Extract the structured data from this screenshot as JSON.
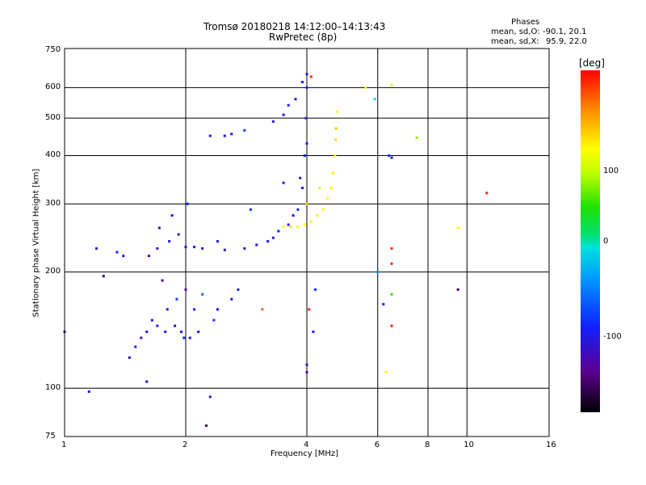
{
  "chart_data": {
    "type": "scatter",
    "title": "Tromsø 20180218 14:12:00–14:13:43",
    "subtitle": "RwPretec (8p)",
    "xlabel": "Frequency [MHz]",
    "ylabel": "Stationary phase Virtual Height [km]",
    "xscale": "log",
    "yscale": "log",
    "xlim": [
      1,
      16
    ],
    "ylim": [
      75,
      750
    ],
    "xticks": [
      "1",
      "2",
      "4",
      "6",
      "8",
      "10",
      "16"
    ],
    "xtick_values": [
      1,
      2,
      4,
      6,
      8,
      10,
      16
    ],
    "yticks": [
      "75",
      "100",
      "200",
      "300",
      "400",
      "500",
      "600",
      "750"
    ],
    "ytick_values": [
      75,
      100,
      200,
      300,
      400,
      500,
      600,
      750
    ],
    "grid": true,
    "stats": {
      "header": "Phases",
      "o_label": "mean, sd,O:",
      "o_value": "-90.1, 20.1",
      "x_label": "mean, sd,X:",
      "x_value": "95.9, 22.0"
    },
    "colorbar": {
      "label": "[deg]",
      "ticks": [
        "100",
        "0",
        "-100"
      ],
      "range": [
        -180,
        180
      ]
    },
    "points": [
      [
        1.0,
        140,
        -120
      ],
      [
        1.15,
        98,
        -110
      ],
      [
        1.2,
        230,
        -100
      ],
      [
        1.25,
        195,
        -150
      ],
      [
        1.35,
        225,
        -90
      ],
      [
        1.4,
        220,
        -110
      ],
      [
        1.45,
        120,
        -110
      ],
      [
        1.5,
        128,
        -100
      ],
      [
        1.55,
        135,
        -120
      ],
      [
        1.6,
        140,
        -105
      ],
      [
        1.62,
        220,
        -130
      ],
      [
        1.65,
        150,
        -100
      ],
      [
        1.6,
        104,
        -110
      ],
      [
        1.7,
        145,
        -90
      ],
      [
        1.7,
        230,
        -110
      ],
      [
        1.72,
        260,
        -120
      ],
      [
        1.75,
        190,
        -140
      ],
      [
        1.78,
        140,
        -110
      ],
      [
        1.8,
        160,
        -100
      ],
      [
        1.82,
        240,
        -90
      ],
      [
        1.85,
        280,
        -100
      ],
      [
        1.88,
        145,
        -130
      ],
      [
        1.9,
        170,
        -80
      ],
      [
        1.92,
        250,
        -110
      ],
      [
        1.95,
        140,
        -100
      ],
      [
        1.98,
        135,
        -90
      ],
      [
        2.0,
        180,
        -120
      ],
      [
        2.0,
        232,
        -110
      ],
      [
        2.02,
        300,
        -100
      ],
      [
        2.05,
        135,
        -110
      ],
      [
        2.1,
        160,
        -90
      ],
      [
        2.1,
        232,
        -100
      ],
      [
        2.15,
        140,
        -100
      ],
      [
        2.2,
        230,
        -110
      ],
      [
        2.2,
        175,
        -60
      ],
      [
        2.25,
        80,
        -150
      ],
      [
        2.3,
        95,
        -100
      ],
      [
        2.3,
        450,
        -90
      ],
      [
        2.35,
        150,
        -80
      ],
      [
        2.4,
        240,
        -100
      ],
      [
        2.4,
        160,
        -90
      ],
      [
        2.5,
        228,
        -100
      ],
      [
        2.5,
        450,
        -100
      ],
      [
        2.6,
        170,
        -110
      ],
      [
        2.6,
        455,
        -90
      ],
      [
        2.7,
        180,
        -100
      ],
      [
        2.8,
        230,
        -100
      ],
      [
        2.8,
        465,
        -80
      ],
      [
        2.9,
        290,
        -100
      ],
      [
        3.0,
        235,
        -95
      ],
      [
        3.1,
        160,
        150
      ],
      [
        3.2,
        240,
        -90
      ],
      [
        3.3,
        245,
        -100
      ],
      [
        3.3,
        490,
        -95
      ],
      [
        3.4,
        255,
        -90
      ],
      [
        3.5,
        510,
        -100
      ],
      [
        3.5,
        340,
        -90
      ],
      [
        3.6,
        265,
        -100
      ],
      [
        3.6,
        540,
        -90
      ],
      [
        3.7,
        280,
        -100
      ],
      [
        3.75,
        560,
        -100
      ],
      [
        3.8,
        290,
        -90
      ],
      [
        3.85,
        350,
        -100
      ],
      [
        3.9,
        330,
        -100
      ],
      [
        3.9,
        620,
        -90
      ],
      [
        3.95,
        400,
        -100
      ],
      [
        3.98,
        500,
        -100
      ],
      [
        4.0,
        600,
        -90
      ],
      [
        4.0,
        650,
        -100
      ],
      [
        4.0,
        430,
        -95
      ],
      [
        4.0,
        115,
        -110
      ],
      [
        4.0,
        110,
        -120
      ],
      [
        4.05,
        160,
        170
      ],
      [
        4.1,
        640,
        170
      ],
      [
        4.15,
        140,
        -110
      ],
      [
        4.2,
        180,
        -90
      ],
      [
        3.5,
        262,
        100
      ],
      [
        3.65,
        262,
        110
      ],
      [
        3.8,
        262,
        100
      ],
      [
        3.95,
        265,
        95
      ],
      [
        4.1,
        270,
        100
      ],
      [
        4.25,
        280,
        90
      ],
      [
        4.4,
        290,
        100
      ],
      [
        4.5,
        310,
        95
      ],
      [
        4.6,
        330,
        105
      ],
      [
        4.65,
        360,
        100
      ],
      [
        4.7,
        400,
        90
      ],
      [
        4.72,
        440,
        110
      ],
      [
        4.73,
        470,
        120
      ],
      [
        4.75,
        520,
        100
      ],
      [
        4.0,
        300,
        110
      ],
      [
        4.3,
        330,
        80
      ],
      [
        5.6,
        600,
        100
      ],
      [
        5.9,
        560,
        -10
      ],
      [
        6.0,
        200,
        -40
      ],
      [
        6.2,
        165,
        -100
      ],
      [
        6.3,
        110,
        100
      ],
      [
        6.4,
        400,
        -80
      ],
      [
        6.5,
        230,
        170
      ],
      [
        6.5,
        210,
        170
      ],
      [
        6.5,
        175,
        40
      ],
      [
        6.5,
        145,
        170
      ],
      [
        6.5,
        610,
        80
      ],
      [
        6.5,
        395,
        -110
      ],
      [
        7.5,
        445,
        60
      ],
      [
        9.5,
        260,
        100
      ],
      [
        9.5,
        180,
        -150
      ],
      [
        11.2,
        320,
        170
      ]
    ]
  }
}
